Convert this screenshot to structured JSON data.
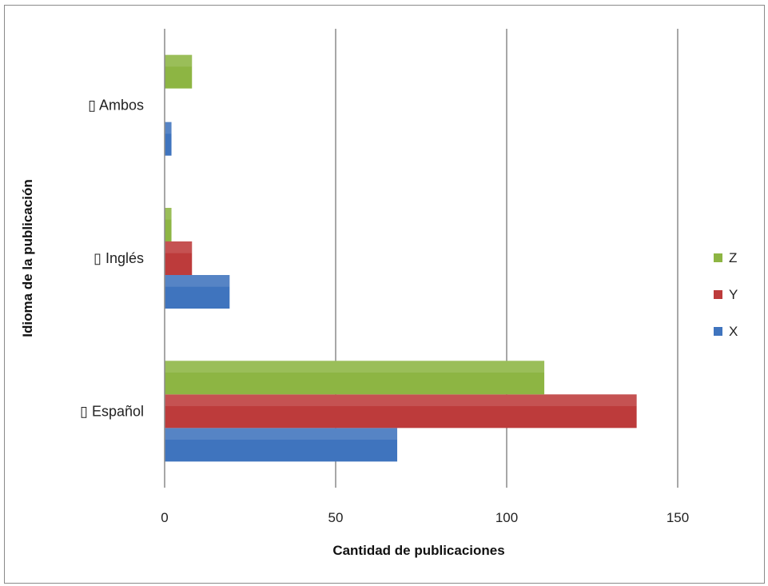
{
  "chart_data": {
    "type": "bar",
    "orientation": "horizontal",
    "categories": [
      "Español",
      "Inglés",
      "Ambos"
    ],
    "category_marker": "▯",
    "series": [
      {
        "name": "X",
        "values": [
          68,
          19,
          2
        ],
        "color": "#3f74be"
      },
      {
        "name": "Y",
        "values": [
          138,
          8,
          0
        ],
        "color": "#bd3b3b"
      },
      {
        "name": "Z",
        "values": [
          111,
          2,
          8
        ],
        "color": "#8db543"
      }
    ],
    "xlabel": "Cantidad de publicaciones",
    "ylabel": "Idioma de la publicación",
    "xlim": [
      0,
      150
    ],
    "x_ticks": [
      0,
      50,
      100,
      150
    ],
    "grid": "vertical major",
    "legend_position": "right",
    "legend_order": [
      "Z",
      "Y",
      "X"
    ]
  }
}
